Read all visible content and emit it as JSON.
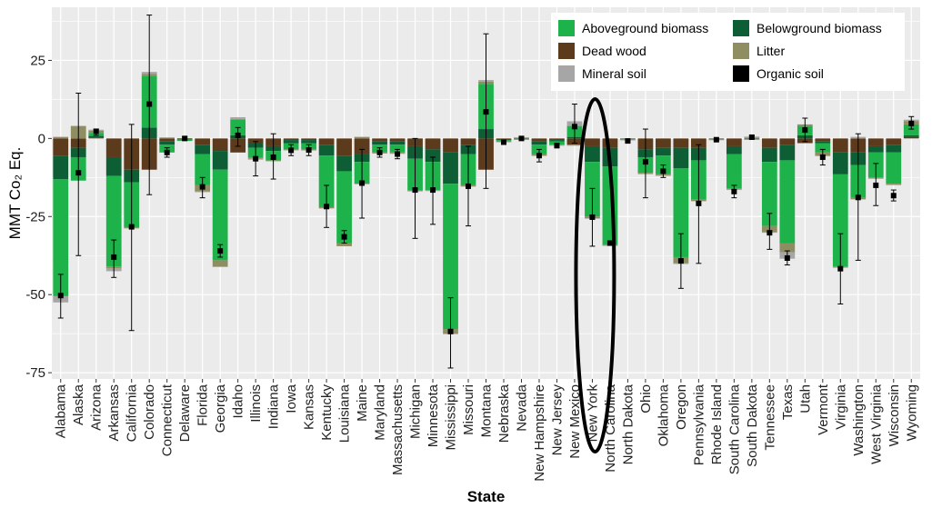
{
  "chart_data": {
    "type": "bar",
    "stacked": true,
    "xlabel": "State",
    "ylabel": "MMT Co₂ Eq.",
    "ylim": [
      -77,
      42
    ],
    "yticks": [
      25,
      0,
      -25,
      -50,
      -75
    ],
    "grid": true,
    "legend_position": "top-right",
    "categories": [
      "Alabama",
      "Alaska",
      "Arizona",
      "Arkansas",
      "California",
      "Colorado",
      "Connecticut",
      "Delaware",
      "Florida",
      "Georgia",
      "Idaho",
      "Illinois",
      "Indiana",
      "Iowa",
      "Kansas",
      "Kentucky",
      "Louisiana",
      "Maine",
      "Maryland",
      "Massachusetts",
      "Michigan",
      "Minnesota",
      "Mississippi",
      "Missouri",
      "Montana",
      "Nebraska",
      "Nevada",
      "New Hampshire",
      "New Jersey",
      "New Mexico",
      "New York",
      "North Carolina",
      "North Dakota",
      "Ohio",
      "Oklahoma",
      "Oregon",
      "Pennsylvania",
      "Rhode Island",
      "South Carolina",
      "South Dakota",
      "Tennessee",
      "Texas",
      "Utah",
      "Vermont",
      "Virginia",
      "Washington",
      "West Virginia",
      "Wisconsin",
      "Wyoming"
    ],
    "series": [
      {
        "name": "Aboveground biomass",
        "color": "#1db34a",
        "values": [
          -37.5,
          -7.5,
          1,
          -29,
          -14.5,
          16.5,
          -2.5,
          -0.5,
          -10,
          -29,
          5,
          -3,
          -3,
          -2,
          -2,
          -16.5,
          -23,
          -7,
          -2.5,
          -2.5,
          -10,
          -9,
          -46.5,
          -10,
          14.5,
          -0.5,
          -0.2,
          -3,
          -1,
          3.5,
          -17.5,
          -25,
          -0.2,
          -5,
          -6,
          -28.5,
          -12.5,
          -0.2,
          -11,
          -0.2,
          -20.5,
          -26.5,
          3,
          -3,
          -29.5,
          -10.5,
          -8,
          -10,
          3.5
        ]
      },
      {
        "name": "Belowground biomass",
        "color": "#0d5e35",
        "values": [
          -7.5,
          -3,
          0.5,
          -6,
          -4,
          3.5,
          -1,
          -0.2,
          -3,
          -6,
          1,
          -1.5,
          -1.5,
          -1,
          -1,
          -3.5,
          -5,
          -2.5,
          -1,
          -1,
          -4,
          -4,
          -10,
          -3,
          3,
          -0.3,
          -0.1,
          -1,
          -0.5,
          0.5,
          -5,
          -6,
          -0.1,
          -2.5,
          -2.5,
          -6.5,
          -4,
          -0.1,
          -2.5,
          -0.1,
          -4.5,
          -5,
          1,
          -0.5,
          -7,
          -4,
          -2,
          -2.5,
          0.5
        ]
      },
      {
        "name": "Dead wood",
        "color": "#5c3a1c",
        "values": [
          -5.5,
          -3,
          0.3,
          -6,
          -10,
          -10,
          -1,
          -0.1,
          -2,
          -4,
          -4.5,
          -1.5,
          -2.5,
          -0.5,
          -0.5,
          -2,
          -5.5,
          -5,
          -1,
          -1,
          -2.5,
          -3.5,
          -4.5,
          -2,
          -10,
          -0.2,
          -0.1,
          -1,
          -0.5,
          -2,
          -2.5,
          -3,
          -0.1,
          -3.5,
          -3,
          -3,
          -3,
          -0.1,
          -2.5,
          -0.1,
          -3,
          -2,
          -1.5,
          -1,
          -4.5,
          -4.5,
          -2.5,
          -2,
          0.5
        ]
      },
      {
        "name": "Litter",
        "color": "#8f8e63",
        "values": [
          0.5,
          4,
          0.7,
          -0.5,
          -0.3,
          0.7,
          0.3,
          0.1,
          -2,
          -2,
          0.3,
          -0.5,
          -0.2,
          -0.2,
          -0.2,
          -0.3,
          -1,
          0.5,
          -0.2,
          -0.3,
          -0.3,
          -0.2,
          -1.5,
          -0.3,
          0.7,
          -0.1,
          0.2,
          -0.5,
          -0.2,
          -0.3,
          -0.5,
          -0.3,
          -0.1,
          -0.3,
          -0.3,
          -2,
          -0.5,
          -0.1,
          -0.3,
          0.3,
          -2,
          -3,
          0.5,
          -1,
          -0.3,
          -0.5,
          -0.3,
          -0.3,
          1
        ],
        "note_on_colors": ""
      },
      {
        "name": "Mineral soil",
        "color": "#a6a6a6",
        "values": [
          -2,
          0,
          0.3,
          -1,
          0,
          0.6,
          0,
          0,
          -0.2,
          -0.2,
          0.5,
          -0.3,
          -0.1,
          -0.1,
          -0.2,
          -0.1,
          0,
          -0.2,
          -0.1,
          -0.1,
          -0.2,
          -0.1,
          -0.2,
          -0.1,
          0.5,
          -0.1,
          0.2,
          -0.1,
          -0.1,
          1.5,
          -0.2,
          -0.1,
          -0.1,
          -0.2,
          -0.2,
          -0.2,
          -0.1,
          0,
          -0.2,
          0.3,
          -0.2,
          -2,
          0,
          -0.2,
          -0.1,
          0.5,
          -0.1,
          -0.2,
          0.5
        ],
        "note_on_colors": ""
      },
      {
        "name": "Organic soil",
        "color": "#000000",
        "values": [
          0,
          0,
          0,
          0,
          0,
          0,
          0,
          0,
          0,
          0,
          0,
          0,
          0,
          0,
          0,
          0,
          0,
          0,
          0,
          0,
          0,
          0,
          0,
          0,
          0,
          0,
          0,
          0,
          0,
          0,
          0,
          0,
          0,
          0,
          0,
          0,
          0,
          0,
          0,
          0,
          0,
          0,
          0,
          0,
          0,
          0,
          0,
          0,
          0
        ]
      }
    ],
    "net_totals": [
      -50.3,
      -11,
      2.3,
      -38,
      -28.3,
      11,
      -4.5,
      0,
      -15.5,
      -36,
      1,
      -6.5,
      -6,
      -3.8,
      -3.7,
      -21.8,
      -31.5,
      -14.3,
      -4.5,
      -5,
      -16.5,
      -16.5,
      -61.8,
      -15.3,
      8.5,
      -1.2,
      0,
      -5.5,
      -2.3,
      3.8,
      -25.2,
      -33.5,
      -0.8,
      -7.5,
      -10.5,
      -39.2,
      -20.8,
      -0.4,
      -17,
      0.4,
      -30.2,
      -38.3,
      2.7,
      -6,
      -41.7,
      -18.9,
      -15,
      -18.3,
      4.8
    ],
    "error_bars": [
      [
        -57.5,
        -43.5
      ],
      [
        -37.5,
        14.5
      ],
      [
        1,
        3
      ],
      [
        -44.5,
        -32.5
      ],
      [
        -61.5,
        4.5
      ],
      [
        -18,
        39.5
      ],
      [
        -6,
        -3
      ],
      [
        -0.5,
        0.5
      ],
      [
        -19,
        -12.5
      ],
      [
        -38,
        -34
      ],
      [
        -2.5,
        3.5
      ],
      [
        -12,
        -1
      ],
      [
        -13,
        1.5
      ],
      [
        -5.5,
        -2
      ],
      [
        -5.5,
        -2
      ],
      [
        -28.5,
        -15
      ],
      [
        -33.5,
        -29.5
      ],
      [
        -25.5,
        -3.5
      ],
      [
        -6,
        -3
      ],
      [
        -6.5,
        -3.5
      ],
      [
        -32,
        0
      ],
      [
        -27.5,
        -6
      ],
      [
        -73.5,
        -51
      ],
      [
        -28,
        -2.5
      ],
      [
        -16,
        33.5
      ],
      [
        -1.5,
        -1
      ],
      [
        -0.5,
        0.5
      ],
      [
        -7.5,
        -3.5
      ],
      [
        -3,
        -1.5
      ],
      [
        -1.5,
        11
      ],
      [
        -34.5,
        -16
      ],
      [
        -34,
        -33
      ],
      [
        -1,
        -0.5
      ],
      [
        -19,
        3
      ],
      [
        -12.5,
        -8.5
      ],
      [
        -48,
        -30.5
      ],
      [
        -40,
        -2
      ],
      [
        -0.6,
        -0.2
      ],
      [
        -19,
        -15
      ],
      [
        0,
        0.8
      ],
      [
        -35.5,
        -24
      ],
      [
        -40.5,
        -36
      ],
      [
        -1,
        6.5
      ],
      [
        -8.5,
        -3.5
      ],
      [
        -53,
        -30.5
      ],
      [
        -39,
        1.5
      ],
      [
        -21.5,
        -8
      ],
      [
        -20,
        -16.5
      ],
      [
        3,
        7
      ]
    ],
    "annotation": {
      "type": "ellipse",
      "target_category": "New York"
    }
  }
}
